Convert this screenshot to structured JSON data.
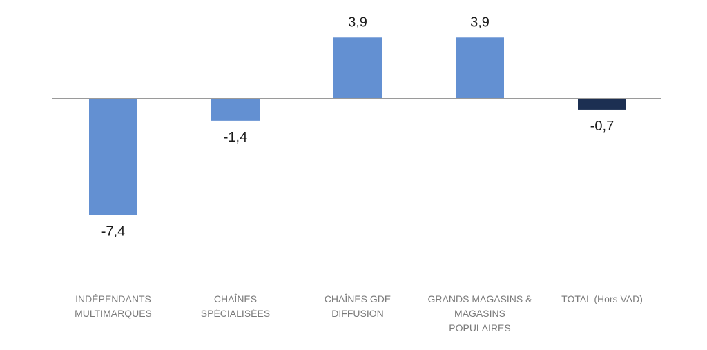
{
  "chart_data": {
    "type": "bar",
    "title": "",
    "xlabel": "",
    "ylabel": "",
    "categories": [
      [
        "INDÉPENDANTS",
        "MULTIMARQUES"
      ],
      [
        "CHAÎNES",
        "SPÉCIALISÉES"
      ],
      [
        "CHAÎNES GDE",
        "DIFFUSION"
      ],
      [
        "GRANDS MAGASINS &",
        "MAGASINS",
        "POPULAIRES"
      ],
      [
        "TOTAL (Hors VAD)"
      ]
    ],
    "values": [
      -7.4,
      -1.4,
      3.9,
      3.9,
      -0.7
    ],
    "value_labels": [
      "-7,4",
      "-1,4",
      "3,9",
      "3,9",
      "-0,7"
    ],
    "bar_colors": [
      "#6390d2",
      "#6390d2",
      "#6390d2",
      "#6390d2",
      "#1c2f52"
    ],
    "axis_color": "#9a9a9a",
    "ylim": [
      -7.4,
      3.9
    ],
    "grid": false,
    "legend": "none"
  }
}
